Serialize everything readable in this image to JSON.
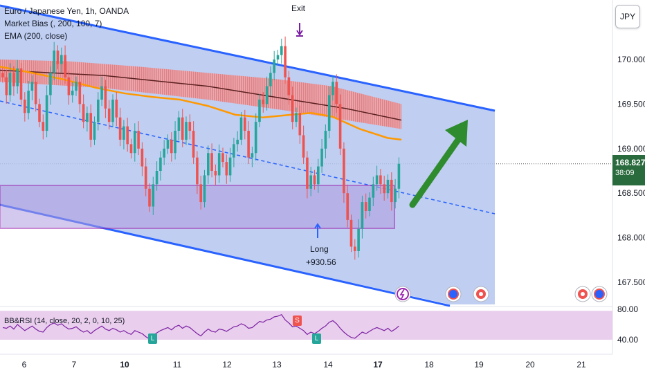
{
  "legend": {
    "symbol": "Euro / Japanese Yen, 1h, OANDA",
    "indicator_1": "Market Bias (, 200, 100, 7)",
    "indicator_2": "EMA (200, close)"
  },
  "currency_button": "JPY",
  "last_price": {
    "value": "168.827",
    "countdown": "38:09"
  },
  "annotations": {
    "exit": "Exit",
    "long_label": "Long",
    "long_profit": "+930.56",
    "oscillator_title": "BB&RSI (14, close, 20, 2, 0, 10, 25)",
    "signal_l": "L",
    "signal_s": "S"
  },
  "colors": {
    "bull": "#26a69a",
    "bear": "#ef5350",
    "channel_line": "#2962ff",
    "channel_fill": "#b4c6ef",
    "zone_border": "#9c27b0",
    "ema": "#ff9800",
    "arrow": "#2e8b2e",
    "oscillator_fill": "#e1bee7",
    "oscillator_line": "#7b1fa2",
    "price_tag": "#2a6b3d"
  },
  "chart_data": {
    "type": "candlestick",
    "price_axis": {
      "range": [
        167.35,
        170.6
      ],
      "ticks": [
        "170.000",
        "169.500",
        "169.000",
        "168.500",
        "168.000",
        "167.500"
      ]
    },
    "time_axis": {
      "ticks": [
        "6",
        "7",
        "10",
        "11",
        "12",
        "13",
        "14",
        "17",
        "18",
        "19",
        "20",
        "21"
      ]
    },
    "oscillator_axis": {
      "range": [
        35,
        82
      ],
      "ticks": [
        "80.00",
        "40.00"
      ]
    },
    "ema": [
      [
        0,
        169.92
      ],
      [
        40,
        169.86
      ],
      [
        90,
        169.78
      ],
      [
        140,
        169.68
      ],
      [
        180,
        169.62
      ],
      [
        220,
        169.58
      ],
      [
        260,
        169.55
      ],
      [
        300,
        169.48
      ],
      [
        340,
        169.38
      ],
      [
        380,
        169.35
      ],
      [
        420,
        169.38
      ],
      [
        450,
        169.4
      ],
      [
        480,
        169.36
      ],
      [
        520,
        169.22
      ],
      [
        560,
        169.12
      ],
      [
        580,
        169.1
      ]
    ],
    "market_bias_cloud": {
      "top": [
        [
          0,
          170.0
        ],
        [
          100,
          169.98
        ],
        [
          200,
          169.92
        ],
        [
          300,
          169.85
        ],
        [
          400,
          169.78
        ],
        [
          480,
          169.7
        ],
        [
          580,
          169.5
        ]
      ],
      "mid": [
        [
          0,
          169.88
        ],
        [
          150,
          169.82
        ],
        [
          300,
          169.7
        ],
        [
          420,
          169.55
        ],
        [
          500,
          169.45
        ],
        [
          580,
          169.32
        ]
      ],
      "bottom": [
        [
          0,
          169.75
        ],
        [
          150,
          169.68
        ],
        [
          300,
          169.55
        ],
        [
          420,
          169.42
        ],
        [
          500,
          169.32
        ],
        [
          580,
          169.22
        ]
      ]
    },
    "closes": [
      169.8,
      169.6,
      169.85,
      169.7,
      169.9,
      169.55,
      169.4,
      169.65,
      169.75,
      169.5,
      169.3,
      169.2,
      169.6,
      169.85,
      170.1,
      169.95,
      170.05,
      169.8,
      169.6,
      169.65,
      169.75,
      169.5,
      169.3,
      169.4,
      169.1,
      169.3,
      169.55,
      169.7,
      169.45,
      169.3,
      169.55,
      169.35,
      169.1,
      169.25,
      169.05,
      168.95,
      169.2,
      169.0,
      168.8,
      168.55,
      168.35,
      168.6,
      168.75,
      168.9,
      169.0,
      169.1,
      168.95,
      169.2,
      169.35,
      169.1,
      169.3,
      169.2,
      168.9,
      168.6,
      168.4,
      168.7,
      168.95,
      168.75,
      168.7,
      168.95,
      168.85,
      168.7,
      168.9,
      169.05,
      169.1,
      169.35,
      169.2,
      168.9,
      168.95,
      169.3,
      169.55,
      169.5,
      169.7,
      169.85,
      170.0,
      170.05,
      170.15,
      169.8,
      169.6,
      169.3,
      169.4,
      169.15,
      168.9,
      168.55,
      168.7,
      168.6,
      168.8,
      169.0,
      169.2,
      169.6,
      169.75,
      169.5,
      169.0,
      168.5,
      168.2,
      167.9,
      167.85,
      168.1,
      168.4,
      168.3,
      168.45,
      168.6,
      168.7,
      168.6,
      168.5,
      168.65,
      168.4,
      168.55,
      168.83
    ],
    "long_entry_price": 168.35,
    "exit_price": 170.1,
    "rsi": [
      56,
      55,
      58,
      54,
      60,
      56,
      52,
      55,
      58,
      54,
      51,
      50,
      56,
      60,
      62,
      59,
      61,
      57,
      54,
      55,
      57,
      53,
      50,
      52,
      48,
      52,
      55,
      58,
      54,
      52,
      55,
      53,
      50,
      52,
      49,
      47,
      52,
      50,
      48,
      44,
      41,
      46,
      49,
      52,
      54,
      56,
      53,
      57,
      59,
      55,
      58,
      56,
      52,
      48,
      45,
      50,
      54,
      51,
      50,
      54,
      53,
      51,
      54,
      57,
      58,
      61,
      59,
      55,
      56,
      60,
      64,
      63,
      66,
      67,
      70,
      71,
      73,
      66,
      62,
      57,
      58,
      55,
      52,
      47,
      50,
      48,
      51,
      55,
      58,
      63,
      65,
      61,
      55,
      50,
      46,
      43,
      42,
      46,
      50,
      48,
      51,
      54,
      56,
      54,
      52,
      55,
      51,
      54,
      58
    ]
  }
}
